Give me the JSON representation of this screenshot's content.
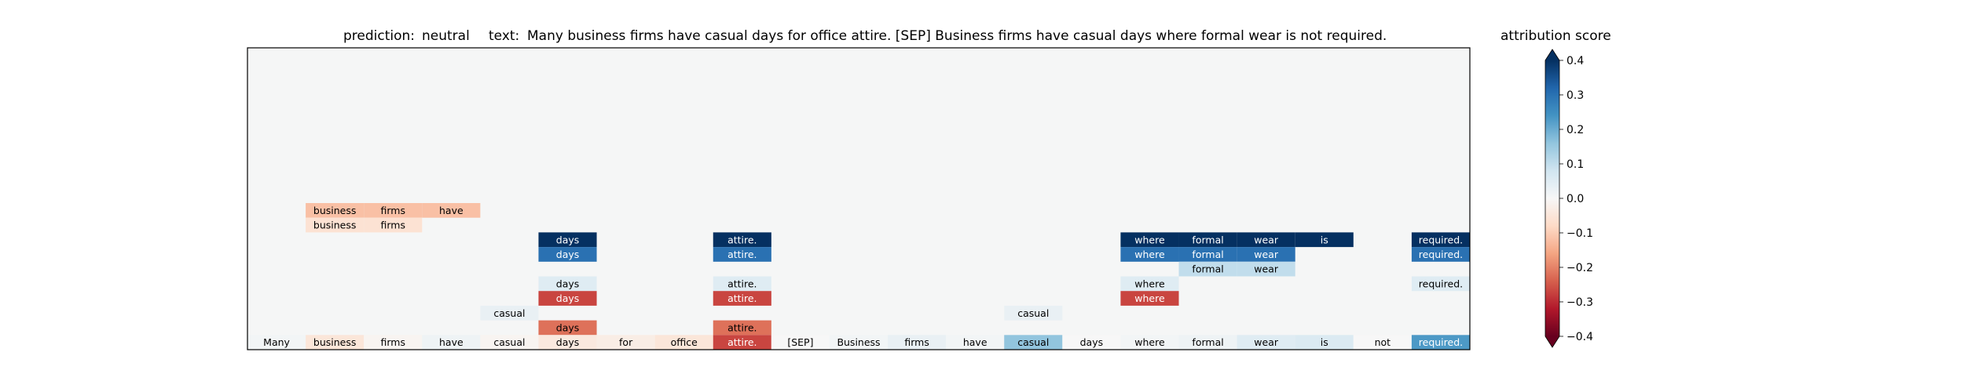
{
  "chart_data": {
    "type": "heatmap",
    "title": {
      "prediction_label": "prediction:",
      "prediction_value": "neutral",
      "text_label": "text:",
      "text_value": "Many business firms have casual days for office attire. [SEP] Business firms have casual days where formal wear is not required."
    },
    "tokens": [
      "Many",
      "business",
      "firms",
      "have",
      "casual",
      "days",
      "for",
      "office",
      "attire.",
      "[SEP]",
      "Business",
      "firms",
      "have",
      "casual",
      "days",
      "where",
      "formal",
      "wear",
      "is",
      "not",
      "required."
    ],
    "n_rows": 20,
    "rows": [
      {
        "row": 11,
        "cells": [
          [
            1,
            -0.12
          ],
          [
            2,
            -0.12
          ],
          [
            3,
            -0.12
          ]
        ]
      },
      {
        "row": 12,
        "cells": [
          [
            1,
            -0.06
          ],
          [
            2,
            -0.06
          ]
        ]
      },
      {
        "row": 13,
        "cells": [
          [
            5,
            0.4
          ],
          [
            8,
            0.4
          ],
          [
            15,
            0.4
          ],
          [
            16,
            0.4
          ],
          [
            17,
            0.4
          ],
          [
            18,
            0.4
          ],
          [
            20,
            0.4
          ]
        ]
      },
      {
        "row": 14,
        "cells": [
          [
            5,
            0.3
          ],
          [
            8,
            0.3
          ],
          [
            15,
            0.3
          ],
          [
            16,
            0.3
          ],
          [
            17,
            0.3
          ],
          [
            20,
            0.3
          ]
        ]
      },
      {
        "row": 15,
        "cells": [
          [
            16,
            0.1
          ],
          [
            17,
            0.1
          ]
        ]
      },
      {
        "row": 16,
        "cells": [
          [
            5,
            0.05
          ],
          [
            8,
            0.05
          ],
          [
            15,
            0.05
          ],
          [
            20,
            0.05
          ]
        ]
      },
      {
        "row": 17,
        "cells": [
          [
            5,
            -0.27
          ],
          [
            8,
            -0.27
          ],
          [
            15,
            -0.27
          ]
        ]
      },
      {
        "row": 18,
        "cells": [
          [
            4,
            0.03
          ],
          [
            13,
            0.03
          ]
        ]
      },
      {
        "row": 19,
        "cells": [
          [
            5,
            -0.22
          ],
          [
            8,
            -0.22
          ]
        ]
      },
      {
        "row": 20,
        "cells": [
          [
            0,
            0.01
          ],
          [
            1,
            -0.05
          ],
          [
            2,
            -0.01
          ],
          [
            3,
            0.02
          ],
          [
            4,
            -0.01
          ],
          [
            5,
            -0.04
          ],
          [
            6,
            -0.03
          ],
          [
            7,
            -0.05
          ],
          [
            8,
            -0.27
          ],
          [
            9,
            0.0
          ],
          [
            10,
            0.01
          ],
          [
            11,
            0.03
          ],
          [
            12,
            0.01
          ],
          [
            13,
            0.16
          ],
          [
            14,
            0.0
          ],
          [
            15,
            0.01
          ],
          [
            16,
            0.02
          ],
          [
            17,
            0.05
          ],
          [
            18,
            0.06
          ],
          [
            19,
            0.0
          ],
          [
            20,
            0.23
          ]
        ]
      }
    ],
    "vmin": -0.4,
    "vmax": 0.4,
    "colormap": "RdBu",
    "background_color": "#f5f6f6",
    "colorbar": {
      "label": "attribution score",
      "ticks": [
        0.4,
        0.3,
        0.2,
        0.1,
        0.0,
        -0.1,
        -0.2,
        -0.3,
        -0.4
      ],
      "tick_labels": [
        "0.4",
        "0.3",
        "0.2",
        "0.1",
        "0.0",
        "−0.1",
        "−0.2",
        "−0.3",
        "−0.4"
      ],
      "extend": "both"
    }
  }
}
